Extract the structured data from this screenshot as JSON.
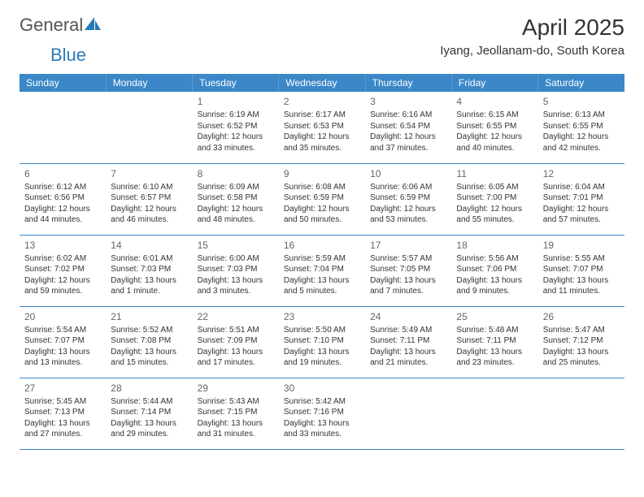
{
  "brand": {
    "general": "General",
    "blue": "Blue"
  },
  "title": "April 2025",
  "location": "Iyang, Jeollanam-do, South Korea",
  "columns": [
    "Sunday",
    "Monday",
    "Tuesday",
    "Wednesday",
    "Thursday",
    "Friday",
    "Saturday"
  ],
  "colors": {
    "header_bg": "#3b87c8",
    "header_text": "#ffffff",
    "row_border": "#3b87c8",
    "body_text": "#333333",
    "daynum": "#666666",
    "brand_gray": "#555555",
    "brand_blue": "#2a7ab9",
    "page_bg": "#ffffff"
  },
  "grid": [
    [
      null,
      null,
      {
        "n": "1",
        "sr": "Sunrise: 6:19 AM",
        "ss": "Sunset: 6:52 PM",
        "d1": "Daylight: 12 hours",
        "d2": "and 33 minutes."
      },
      {
        "n": "2",
        "sr": "Sunrise: 6:17 AM",
        "ss": "Sunset: 6:53 PM",
        "d1": "Daylight: 12 hours",
        "d2": "and 35 minutes."
      },
      {
        "n": "3",
        "sr": "Sunrise: 6:16 AM",
        "ss": "Sunset: 6:54 PM",
        "d1": "Daylight: 12 hours",
        "d2": "and 37 minutes."
      },
      {
        "n": "4",
        "sr": "Sunrise: 6:15 AM",
        "ss": "Sunset: 6:55 PM",
        "d1": "Daylight: 12 hours",
        "d2": "and 40 minutes."
      },
      {
        "n": "5",
        "sr": "Sunrise: 6:13 AM",
        "ss": "Sunset: 6:55 PM",
        "d1": "Daylight: 12 hours",
        "d2": "and 42 minutes."
      }
    ],
    [
      {
        "n": "6",
        "sr": "Sunrise: 6:12 AM",
        "ss": "Sunset: 6:56 PM",
        "d1": "Daylight: 12 hours",
        "d2": "and 44 minutes."
      },
      {
        "n": "7",
        "sr": "Sunrise: 6:10 AM",
        "ss": "Sunset: 6:57 PM",
        "d1": "Daylight: 12 hours",
        "d2": "and 46 minutes."
      },
      {
        "n": "8",
        "sr": "Sunrise: 6:09 AM",
        "ss": "Sunset: 6:58 PM",
        "d1": "Daylight: 12 hours",
        "d2": "and 48 minutes."
      },
      {
        "n": "9",
        "sr": "Sunrise: 6:08 AM",
        "ss": "Sunset: 6:59 PM",
        "d1": "Daylight: 12 hours",
        "d2": "and 50 minutes."
      },
      {
        "n": "10",
        "sr": "Sunrise: 6:06 AM",
        "ss": "Sunset: 6:59 PM",
        "d1": "Daylight: 12 hours",
        "d2": "and 53 minutes."
      },
      {
        "n": "11",
        "sr": "Sunrise: 6:05 AM",
        "ss": "Sunset: 7:00 PM",
        "d1": "Daylight: 12 hours",
        "d2": "and 55 minutes."
      },
      {
        "n": "12",
        "sr": "Sunrise: 6:04 AM",
        "ss": "Sunset: 7:01 PM",
        "d1": "Daylight: 12 hours",
        "d2": "and 57 minutes."
      }
    ],
    [
      {
        "n": "13",
        "sr": "Sunrise: 6:02 AM",
        "ss": "Sunset: 7:02 PM",
        "d1": "Daylight: 12 hours",
        "d2": "and 59 minutes."
      },
      {
        "n": "14",
        "sr": "Sunrise: 6:01 AM",
        "ss": "Sunset: 7:03 PM",
        "d1": "Daylight: 13 hours",
        "d2": "and 1 minute."
      },
      {
        "n": "15",
        "sr": "Sunrise: 6:00 AM",
        "ss": "Sunset: 7:03 PM",
        "d1": "Daylight: 13 hours",
        "d2": "and 3 minutes."
      },
      {
        "n": "16",
        "sr": "Sunrise: 5:59 AM",
        "ss": "Sunset: 7:04 PM",
        "d1": "Daylight: 13 hours",
        "d2": "and 5 minutes."
      },
      {
        "n": "17",
        "sr": "Sunrise: 5:57 AM",
        "ss": "Sunset: 7:05 PM",
        "d1": "Daylight: 13 hours",
        "d2": "and 7 minutes."
      },
      {
        "n": "18",
        "sr": "Sunrise: 5:56 AM",
        "ss": "Sunset: 7:06 PM",
        "d1": "Daylight: 13 hours",
        "d2": "and 9 minutes."
      },
      {
        "n": "19",
        "sr": "Sunrise: 5:55 AM",
        "ss": "Sunset: 7:07 PM",
        "d1": "Daylight: 13 hours",
        "d2": "and 11 minutes."
      }
    ],
    [
      {
        "n": "20",
        "sr": "Sunrise: 5:54 AM",
        "ss": "Sunset: 7:07 PM",
        "d1": "Daylight: 13 hours",
        "d2": "and 13 minutes."
      },
      {
        "n": "21",
        "sr": "Sunrise: 5:52 AM",
        "ss": "Sunset: 7:08 PM",
        "d1": "Daylight: 13 hours",
        "d2": "and 15 minutes."
      },
      {
        "n": "22",
        "sr": "Sunrise: 5:51 AM",
        "ss": "Sunset: 7:09 PM",
        "d1": "Daylight: 13 hours",
        "d2": "and 17 minutes."
      },
      {
        "n": "23",
        "sr": "Sunrise: 5:50 AM",
        "ss": "Sunset: 7:10 PM",
        "d1": "Daylight: 13 hours",
        "d2": "and 19 minutes."
      },
      {
        "n": "24",
        "sr": "Sunrise: 5:49 AM",
        "ss": "Sunset: 7:11 PM",
        "d1": "Daylight: 13 hours",
        "d2": "and 21 minutes."
      },
      {
        "n": "25",
        "sr": "Sunrise: 5:48 AM",
        "ss": "Sunset: 7:11 PM",
        "d1": "Daylight: 13 hours",
        "d2": "and 23 minutes."
      },
      {
        "n": "26",
        "sr": "Sunrise: 5:47 AM",
        "ss": "Sunset: 7:12 PM",
        "d1": "Daylight: 13 hours",
        "d2": "and 25 minutes."
      }
    ],
    [
      {
        "n": "27",
        "sr": "Sunrise: 5:45 AM",
        "ss": "Sunset: 7:13 PM",
        "d1": "Daylight: 13 hours",
        "d2": "and 27 minutes."
      },
      {
        "n": "28",
        "sr": "Sunrise: 5:44 AM",
        "ss": "Sunset: 7:14 PM",
        "d1": "Daylight: 13 hours",
        "d2": "and 29 minutes."
      },
      {
        "n": "29",
        "sr": "Sunrise: 5:43 AM",
        "ss": "Sunset: 7:15 PM",
        "d1": "Daylight: 13 hours",
        "d2": "and 31 minutes."
      },
      {
        "n": "30",
        "sr": "Sunrise: 5:42 AM",
        "ss": "Sunset: 7:16 PM",
        "d1": "Daylight: 13 hours",
        "d2": "and 33 minutes."
      },
      null,
      null,
      null
    ]
  ]
}
